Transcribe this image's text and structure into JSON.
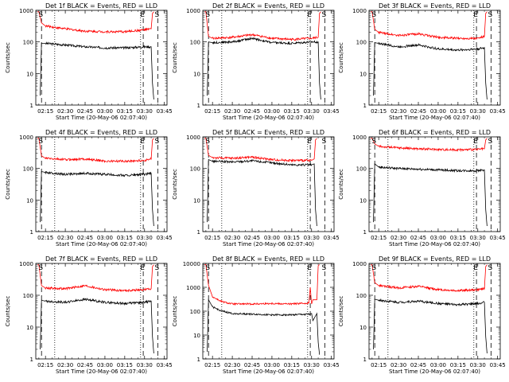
{
  "figure": {
    "xlabel": "Start Time (20-May-06 02:07:40)",
    "ylabel": "Counts/sec",
    "x_tick_labels": [
      "02:15",
      "02:30",
      "02:45",
      "03:00",
      "03:15",
      "03:30",
      "03:45"
    ],
    "y_tick_labels_1000": [
      "1",
      "10",
      "100",
      "1000"
    ],
    "y_tick_labels_10000": [
      "1",
      "10",
      "100",
      "1000",
      "10000"
    ],
    "marker_S": "S",
    "marker_E": "E",
    "colors": {
      "events": "#000000",
      "lld": "#ff0000",
      "axes": "#000000"
    }
  },
  "chart_data": [
    {
      "type": "line",
      "title": "Det 1f BLACK = Events, RED = LLD",
      "x_range": [
        "02:07:40",
        "03:47"
      ],
      "ylim": [
        1,
        1000
      ],
      "yscale": "log",
      "markers": {
        "S": [
          "02:12",
          "03:40"
        ],
        "E": [
          "03:29"
        ]
      },
      "dotted_lines": [
        "02:22",
        "03:27"
      ],
      "series": [
        {
          "color": "#000000",
          "x": [
            "02:11",
            "02:12",
            "02:15",
            "02:30",
            "02:45",
            "03:00",
            "03:15",
            "03:30",
            "03:35",
            "03:36",
            "03:37"
          ],
          "y": [
            2,
            90,
            90,
            80,
            70,
            65,
            65,
            70,
            70,
            5,
            1.5
          ]
        },
        {
          "color": "#ff0000",
          "x": [
            "02:09",
            "02:10",
            "02:12",
            "02:15",
            "02:30",
            "02:45",
            "03:00",
            "03:15",
            "03:30",
            "03:35",
            "03:36",
            "03:37"
          ],
          "y": [
            900,
            900,
            400,
            320,
            260,
            220,
            210,
            210,
            240,
            260,
            800,
            900
          ]
        }
      ]
    },
    {
      "type": "line",
      "title": "Det 2f BLACK = Events, RED = LLD",
      "x_range": [
        "02:07:40",
        "03:47"
      ],
      "ylim": [
        1,
        1000
      ],
      "yscale": "log",
      "markers": {
        "S": [
          "02:12",
          "03:40"
        ],
        "E": [
          "03:29"
        ]
      },
      "dotted_lines": [
        "02:22",
        "03:27"
      ],
      "series": [
        {
          "color": "#000000",
          "x": [
            "02:11",
            "02:12",
            "02:15",
            "02:30",
            "02:45",
            "03:00",
            "03:15",
            "03:30",
            "03:35",
            "03:36",
            "03:37"
          ],
          "y": [
            2,
            100,
            95,
            100,
            130,
            95,
            90,
            100,
            100,
            5,
            1.5
          ]
        },
        {
          "color": "#ff0000",
          "x": [
            "02:09",
            "02:10",
            "02:12",
            "02:15",
            "02:30",
            "02:45",
            "03:00",
            "03:15",
            "03:30",
            "03:35",
            "03:36",
            "03:37"
          ],
          "y": [
            900,
            900,
            150,
            130,
            140,
            170,
            130,
            120,
            130,
            140,
            800,
            900
          ]
        }
      ]
    },
    {
      "type": "line",
      "title": "Det 3f BLACK = Events, RED = LLD",
      "x_range": [
        "02:07:40",
        "03:47"
      ],
      "ylim": [
        1,
        1000
      ],
      "yscale": "log",
      "markers": {
        "S": [
          "02:12",
          "03:40"
        ],
        "E": [
          "03:29"
        ]
      },
      "dotted_lines": [
        "02:22",
        "03:27"
      ],
      "series": [
        {
          "color": "#000000",
          "x": [
            "02:11",
            "02:12",
            "02:15",
            "02:30",
            "02:45",
            "03:00",
            "03:15",
            "03:30",
            "03:35",
            "03:36",
            "03:37"
          ],
          "y": [
            2,
            95,
            90,
            70,
            80,
            60,
            55,
            60,
            65,
            5,
            1.5
          ]
        },
        {
          "color": "#ff0000",
          "x": [
            "02:09",
            "02:10",
            "02:12",
            "02:15",
            "02:30",
            "02:45",
            "03:00",
            "03:15",
            "03:30",
            "03:35",
            "03:36",
            "03:37"
          ],
          "y": [
            900,
            900,
            250,
            200,
            160,
            180,
            140,
            130,
            130,
            150,
            800,
            900
          ]
        }
      ]
    },
    {
      "type": "line",
      "title": "Det 4f BLACK = Events, RED = LLD",
      "x_range": [
        "02:07:40",
        "03:47"
      ],
      "ylim": [
        1,
        1000
      ],
      "yscale": "log",
      "markers": {
        "S": [
          "02:12",
          "03:40"
        ],
        "E": [
          "03:29"
        ]
      },
      "dotted_lines": [
        "02:22",
        "03:27"
      ],
      "series": [
        {
          "color": "#000000",
          "x": [
            "02:11",
            "02:12",
            "02:15",
            "02:30",
            "02:45",
            "03:00",
            "03:15",
            "03:30",
            "03:35",
            "03:36",
            "03:37"
          ],
          "y": [
            2,
            80,
            75,
            65,
            70,
            65,
            60,
            65,
            70,
            5,
            1.5
          ]
        },
        {
          "color": "#ff0000",
          "x": [
            "02:09",
            "02:10",
            "02:12",
            "02:15",
            "02:30",
            "02:45",
            "03:00",
            "03:15",
            "03:30",
            "03:35",
            "03:36",
            "03:37"
          ],
          "y": [
            900,
            900,
            250,
            210,
            190,
            200,
            170,
            170,
            180,
            200,
            800,
            900
          ]
        }
      ]
    },
    {
      "type": "line",
      "title": "Det 5f BLACK = Events, RED = LLD",
      "x_range": [
        "02:07:40",
        "03:47"
      ],
      "ylim": [
        1,
        1000
      ],
      "yscale": "log",
      "markers": {
        "S": [
          "02:12",
          "03:40"
        ],
        "E": [
          "03:29"
        ]
      },
      "dotted_lines": [
        "02:22",
        "03:27"
      ],
      "series": [
        {
          "color": "#000000",
          "x": [
            "02:11",
            "02:12",
            "02:15",
            "02:30",
            "02:45",
            "03:00",
            "03:15",
            "03:30",
            "03:32",
            "03:33",
            "03:34"
          ],
          "y": [
            2,
            190,
            170,
            160,
            175,
            150,
            130,
            130,
            140,
            5,
            1.5
          ]
        },
        {
          "color": "#ff0000",
          "x": [
            "02:09",
            "02:10",
            "02:12",
            "02:15",
            "02:30",
            "02:45",
            "03:00",
            "03:15",
            "03:30",
            "03:32",
            "03:33",
            "03:34"
          ],
          "y": [
            900,
            900,
            260,
            220,
            210,
            230,
            190,
            180,
            180,
            200,
            800,
            900
          ]
        }
      ]
    },
    {
      "type": "line",
      "title": "Det 6f BLACK = Events, RED = LLD",
      "x_range": [
        "02:07:40",
        "03:47"
      ],
      "ylim": [
        1,
        1000
      ],
      "yscale": "log",
      "markers": {
        "S": [
          "02:12",
          "03:40"
        ],
        "E": [
          "03:29"
        ]
      },
      "dotted_lines": [
        "02:22",
        "03:27"
      ],
      "series": [
        {
          "color": "#000000",
          "x": [
            "02:11",
            "02:12",
            "02:15",
            "02:30",
            "02:45",
            "03:00",
            "03:15",
            "03:30",
            "03:35",
            "03:36",
            "03:37"
          ],
          "y": [
            2,
            140,
            110,
            100,
            95,
            90,
            85,
            85,
            90,
            5,
            1.5
          ]
        },
        {
          "color": "#ff0000",
          "x": [
            "02:09",
            "02:10",
            "02:12",
            "02:15",
            "02:30",
            "02:45",
            "03:00",
            "03:15",
            "03:30",
            "03:35",
            "03:36",
            "03:37"
          ],
          "y": [
            900,
            900,
            600,
            500,
            450,
            420,
            400,
            390,
            400,
            420,
            800,
            900
          ]
        }
      ]
    },
    {
      "type": "line",
      "title": "Det 7f BLACK = Events, RED = LLD",
      "x_range": [
        "02:07:40",
        "03:47"
      ],
      "ylim": [
        1,
        1000
      ],
      "yscale": "log",
      "markers": {
        "S": [
          "02:12",
          "03:40"
        ],
        "E": [
          "03:29"
        ]
      },
      "dotted_lines": [
        "02:22",
        "03:27"
      ],
      "series": [
        {
          "color": "#000000",
          "x": [
            "02:11",
            "02:12",
            "02:15",
            "02:30",
            "02:45",
            "03:00",
            "03:15",
            "03:30",
            "03:35",
            "03:36",
            "03:37"
          ],
          "y": [
            2,
            70,
            65,
            60,
            75,
            60,
            55,
            60,
            65,
            5,
            1.5
          ]
        },
        {
          "color": "#ff0000",
          "x": [
            "02:09",
            "02:10",
            "02:12",
            "02:15",
            "02:30",
            "02:45",
            "03:00",
            "03:15",
            "03:30",
            "03:35",
            "03:36",
            "03:37"
          ],
          "y": [
            900,
            900,
            200,
            170,
            160,
            200,
            150,
            140,
            150,
            160,
            800,
            900
          ]
        }
      ]
    },
    {
      "type": "line",
      "title": "Det 8f BLACK = Events, RED = LLD",
      "x_range": [
        "02:07:40",
        "03:47"
      ],
      "ylim": [
        1,
        10000
      ],
      "yscale": "log",
      "markers": {
        "S": [
          "02:12",
          "03:40"
        ],
        "E": [
          "03:29"
        ]
      },
      "dotted_lines": [
        "02:22",
        "03:27"
      ],
      "series": [
        {
          "color": "#000000",
          "x": [
            "02:11",
            "02:12",
            "02:15",
            "02:22",
            "02:30",
            "02:45",
            "03:00",
            "03:15",
            "03:29",
            "03:30",
            "03:31",
            "03:34",
            "03:35",
            "03:36"
          ],
          "y": [
            2,
            300,
            150,
            100,
            80,
            75,
            70,
            70,
            75,
            80,
            40,
            80,
            5,
            1.5
          ]
        },
        {
          "color": "#ff0000",
          "x": [
            "02:09",
            "02:10",
            "02:12",
            "02:15",
            "02:22",
            "02:30",
            "02:45",
            "03:00",
            "03:15",
            "03:28",
            "03:29",
            "03:30",
            "03:31",
            "03:34",
            "03:35",
            "03:36"
          ],
          "y": [
            9000,
            9000,
            1200,
            400,
            250,
            200,
            200,
            210,
            200,
            220,
            1000,
            200,
            300,
            300,
            8000,
            9000
          ]
        }
      ]
    },
    {
      "type": "line",
      "title": "Det 9f BLACK = Events, RED = LLD",
      "x_range": [
        "02:07:40",
        "03:47"
      ],
      "ylim": [
        1,
        1000
      ],
      "yscale": "log",
      "markers": {
        "S": [
          "02:12",
          "03:40"
        ],
        "E": [
          "03:29"
        ]
      },
      "dotted_lines": [
        "02:22",
        "03:27"
      ],
      "series": [
        {
          "color": "#000000",
          "x": [
            "02:11",
            "02:12",
            "02:15",
            "02:30",
            "02:45",
            "03:00",
            "03:15",
            "03:30",
            "03:35",
            "03:36",
            "03:37"
          ],
          "y": [
            2,
            75,
            70,
            60,
            65,
            55,
            50,
            55,
            60,
            5,
            1.5
          ]
        },
        {
          "color": "#ff0000",
          "x": [
            "02:09",
            "02:10",
            "02:12",
            "02:15",
            "02:30",
            "02:45",
            "03:00",
            "03:15",
            "03:30",
            "03:35",
            "03:36",
            "03:37"
          ],
          "y": [
            900,
            900,
            250,
            200,
            170,
            190,
            150,
            140,
            150,
            160,
            800,
            900
          ]
        }
      ]
    }
  ]
}
